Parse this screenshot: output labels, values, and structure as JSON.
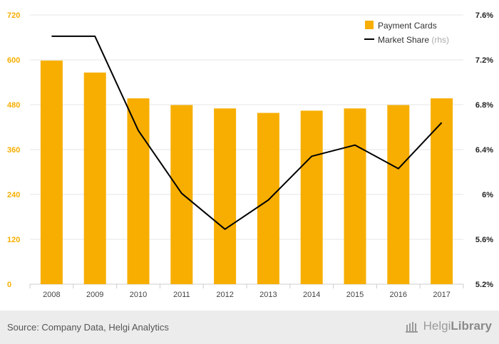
{
  "chart_data": {
    "type": "bar",
    "categories": [
      "2008",
      "2009",
      "2010",
      "2011",
      "2012",
      "2013",
      "2014",
      "2015",
      "2016",
      "2017"
    ],
    "series": [
      {
        "name": "Payment Cards",
        "type": "bar",
        "axis": "left",
        "color": "#f7ae00",
        "values": [
          598,
          566,
          497,
          479,
          470,
          458,
          464,
          470,
          479,
          497
        ]
      },
      {
        "name": "Market Share",
        "name_suffix": "(rhs)",
        "type": "line",
        "axis": "right",
        "color": "#000000",
        "values": [
          7.41,
          7.41,
          6.57,
          6.01,
          5.69,
          5.95,
          6.34,
          6.44,
          6.23,
          6.64
        ]
      }
    ],
    "y_left": {
      "ylim": [
        0,
        720
      ],
      "ticks": [
        "0",
        "120",
        "240",
        "360",
        "480",
        "600",
        "720"
      ],
      "tick_color": "#f7ae00"
    },
    "y_right": {
      "ylim": [
        5.2,
        7.6
      ],
      "ticks": [
        "5.2%",
        "5.6%",
        "6%",
        "6.4%",
        "6.8%",
        "7.2%",
        "7.6%"
      ],
      "tick_color": "#222222"
    },
    "grid": true,
    "legend": "top-right"
  },
  "footer": {
    "source": "Source: Company Data, Helgi Analytics",
    "brand_light": "Helgi",
    "brand_bold": "Library"
  }
}
